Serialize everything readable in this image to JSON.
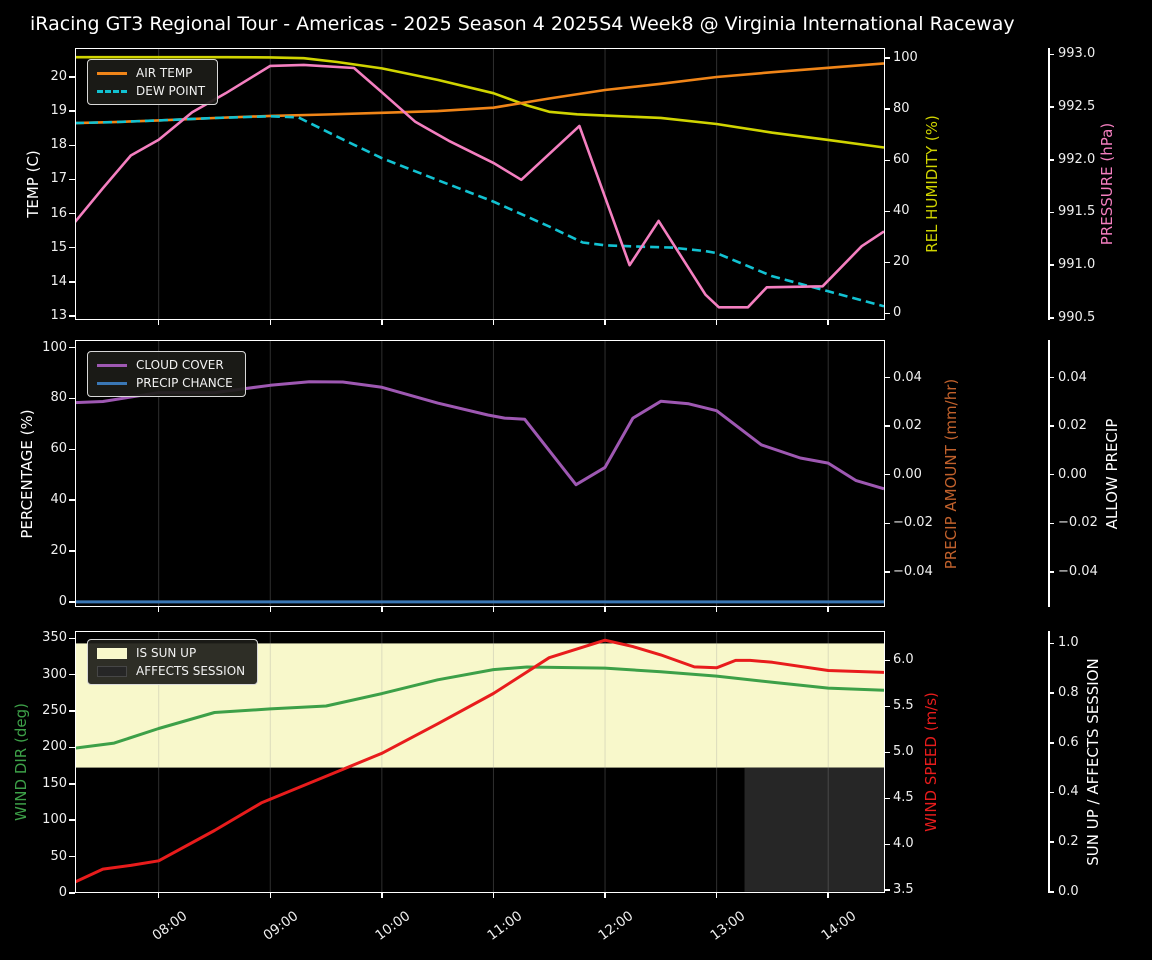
{
  "title": "iRacing GT3 Regional Tour - Americas - 2025 Season 4 2025S4 Week8 @ Virginia International Raceway",
  "colors": {
    "background": "#000000",
    "frame": "#ffffff",
    "grid": "#9a9a9a",
    "tick_text": "#f0f0f0",
    "title_text": "#ffffff"
  },
  "x_axis": {
    "range_hours": [
      7.25,
      14.5
    ],
    "tick_hours": [
      8,
      9,
      10,
      11,
      12,
      13,
      14
    ],
    "tick_labels": [
      "08:00",
      "09:00",
      "10:00",
      "11:00",
      "12:00",
      "13:00",
      "14:00"
    ]
  },
  "chart_data": [
    {
      "id": "temp-humidity-pressure",
      "type": "line",
      "axes": {
        "left": {
          "label": "TEMP (C)",
          "color": "#ffffff",
          "range": [
            12.88,
            20.85
          ],
          "ticks": {
            "values": [
              13,
              14,
              15,
              16,
              17,
              18,
              19,
              20
            ],
            "labels": [
              "13",
              "14",
              "15",
              "16",
              "17",
              "18",
              "19",
              "20"
            ]
          }
        },
        "right1": {
          "label": "REL HUMIDITY (%)",
          "color": "#d0d400",
          "range": [
            -2.6,
            104
          ],
          "ticks": {
            "values": [
              0,
              20,
              40,
              60,
              80,
              100
            ],
            "labels": [
              "0",
              "20",
              "40",
              "60",
              "80",
              "100"
            ]
          }
        },
        "right2": {
          "label": "PRESSURE (hPa)",
          "color": "#f47fc0",
          "range": [
            990.48,
            993.06
          ],
          "ticks": {
            "values": [
              990.5,
              991.0,
              991.5,
              992.0,
              992.5,
              993.0
            ],
            "labels": [
              "990.5",
              "991.0",
              "991.5",
              "992.0",
              "992.5",
              "993.0"
            ]
          }
        }
      },
      "legend": [
        {
          "label": "AIR TEMP",
          "color": "#f08518",
          "swatch": "line"
        },
        {
          "label": "DEW POINT",
          "color": "#12c2d2",
          "swatch": "dashed"
        }
      ],
      "series": [
        {
          "name": "REL HUMIDITY",
          "axis": "right1",
          "color": "#d0d400",
          "points": [
            [
              7.25,
              100.4
            ],
            [
              8,
              100.4
            ],
            [
              8.6,
              100.4
            ],
            [
              9,
              100.3
            ],
            [
              9.3,
              100
            ],
            [
              9.6,
              98.5
            ],
            [
              10,
              96
            ],
            [
              10.5,
              91.5
            ],
            [
              11,
              86.3
            ],
            [
              11.3,
              81.5
            ],
            [
              11.5,
              79
            ],
            [
              11.75,
              78
            ],
            [
              12,
              77.5
            ],
            [
              12.5,
              76.6
            ],
            [
              13,
              74.2
            ],
            [
              13.5,
              70.8
            ],
            [
              14,
              68
            ],
            [
              14.5,
              65
            ]
          ]
        },
        {
          "name": "AIR TEMP",
          "axis": "left",
          "color": "#f08518",
          "points": [
            [
              7.25,
              18.65
            ],
            [
              7.6,
              18.68
            ],
            [
              8,
              18.73
            ],
            [
              8.5,
              18.8
            ],
            [
              9,
              18.86
            ],
            [
              9.5,
              18.9
            ],
            [
              10,
              18.95
            ],
            [
              10.5,
              19
            ],
            [
              11,
              19.1
            ],
            [
              11.5,
              19.37
            ],
            [
              12,
              19.62
            ],
            [
              12.5,
              19.8
            ],
            [
              13,
              20
            ],
            [
              13.5,
              20.14
            ],
            [
              14,
              20.27
            ],
            [
              14.5,
              20.4
            ]
          ]
        },
        {
          "name": "DEW POINT",
          "axis": "left",
          "color": "#12c2d2",
          "dash": "9 5",
          "points": [
            [
              7.25,
              18.65
            ],
            [
              7.6,
              18.68
            ],
            [
              8,
              18.73
            ],
            [
              8.5,
              18.8
            ],
            [
              9,
              18.85
            ],
            [
              9.25,
              18.82
            ],
            [
              9.6,
              18.25
            ],
            [
              10,
              17.62
            ],
            [
              10.5,
              16.98
            ],
            [
              11,
              16.35
            ],
            [
              11.5,
              15.62
            ],
            [
              11.8,
              15.15
            ],
            [
              12,
              15.07
            ],
            [
              12.3,
              15.03
            ],
            [
              12.6,
              15
            ],
            [
              12.9,
              14.9
            ],
            [
              13,
              14.84
            ],
            [
              13.5,
              14.16
            ],
            [
              14,
              13.72
            ],
            [
              14.5,
              13.28
            ]
          ]
        },
        {
          "name": "PRESSURE",
          "axis": "right2",
          "color": "#f47fc0",
          "points": [
            [
              7.25,
              991.41
            ],
            [
              7.5,
              991.73
            ],
            [
              7.75,
              992.04
            ],
            [
              8,
              992.19
            ],
            [
              8.3,
              992.45
            ],
            [
              8.6,
              992.63
            ],
            [
              9,
              992.89
            ],
            [
              9.3,
              992.9
            ],
            [
              9.75,
              992.87
            ],
            [
              10,
              992.64
            ],
            [
              10.3,
              992.36
            ],
            [
              10.6,
              992.18
            ],
            [
              11,
              991.97
            ],
            [
              11.25,
              991.81
            ],
            [
              11.77,
              992.32
            ],
            [
              12.22,
              991.0
            ],
            [
              12.48,
              991.42
            ],
            [
              12.9,
              990.72
            ],
            [
              13.02,
              990.6
            ],
            [
              13.28,
              990.6
            ],
            [
              13.45,
              990.79
            ],
            [
              13.95,
              990.8
            ],
            [
              14.3,
              991.18
            ],
            [
              14.5,
              991.32
            ]
          ]
        }
      ]
    },
    {
      "id": "cloud-precip",
      "type": "line",
      "axes": {
        "left": {
          "label": "PERCENTAGE (%)",
          "color": "#ffffff",
          "range": [
            -2,
            103
          ],
          "ticks": {
            "values": [
              0,
              20,
              40,
              60,
              80,
              100
            ],
            "labels": [
              "0",
              "20",
              "40",
              "60",
              "80",
              "100"
            ]
          }
        },
        "right1": {
          "label": "PRECIP AMOUNT (mm/hr)",
          "color": "#c1612c",
          "range": [
            -0.0545,
            0.0555
          ],
          "ticks": {
            "values": [
              -0.04,
              -0.02,
              0,
              0.02,
              0.04
            ],
            "labels": [
              "−0.04",
              "−0.02",
              "0.00",
              "0.02",
              "0.04"
            ]
          }
        },
        "right2": {
          "label": "ALLOW PRECIP",
          "color": "#ffffff",
          "range": [
            -0.0545,
            0.0555
          ],
          "ticks": {
            "values": [
              -0.04,
              -0.02,
              0,
              0.02,
              0.04
            ],
            "labels": [
              "−0.04",
              "−0.02",
              "0.00",
              "0.02",
              "0.04"
            ]
          }
        }
      },
      "legend": [
        {
          "label": "CLOUD COVER",
          "color": "#9e58b2",
          "swatch": "line"
        },
        {
          "label": "PRECIP CHANCE",
          "color": "#3a77b5",
          "swatch": "line"
        }
      ],
      "series": [
        {
          "name": "CLOUD COVER",
          "axis": "left",
          "color": "#9e58b2",
          "points": [
            [
              7.25,
              78.4
            ],
            [
              7.5,
              78.8
            ],
            [
              8,
              82.3
            ],
            [
              8.5,
              82.3
            ],
            [
              9,
              85.2
            ],
            [
              9.35,
              86.6
            ],
            [
              9.65,
              86.5
            ],
            [
              10,
              84.4
            ],
            [
              10.5,
              78.2
            ],
            [
              10.95,
              73.5
            ],
            [
              11.1,
              72.3
            ],
            [
              11.28,
              71.8
            ],
            [
              11.74,
              46.1
            ],
            [
              12,
              52.9
            ],
            [
              12.25,
              72.3
            ],
            [
              12.5,
              78.9
            ],
            [
              12.75,
              77.9
            ],
            [
              13,
              75.2
            ],
            [
              13.4,
              61.8
            ],
            [
              13.75,
              56.6
            ],
            [
              14,
              54.6
            ],
            [
              14.25,
              47.7
            ],
            [
              14.5,
              44.5
            ]
          ]
        },
        {
          "name": "PRECIP CHANCE",
          "axis": "left",
          "color": "#3a77b5",
          "points": [
            [
              7.25,
              0
            ],
            [
              14.5,
              0
            ]
          ]
        }
      ]
    },
    {
      "id": "wind-sun",
      "type": "line",
      "axes": {
        "left": {
          "label": "WIND DIR (deg)",
          "color": "#3da048",
          "range": [
            0,
            360
          ],
          "ticks": {
            "values": [
              0,
              50,
              100,
              150,
              200,
              250,
              300,
              350
            ],
            "labels": [
              "0",
              "50",
              "100",
              "150",
              "200",
              "250",
              "300",
              "350"
            ]
          }
        },
        "right1": {
          "label": "WIND SPEED (m/s)",
          "color": "#e81c1c",
          "range": [
            3.47,
            6.32
          ],
          "ticks": {
            "values": [
              3.5,
              4.0,
              4.5,
              5.0,
              5.5,
              6.0
            ],
            "labels": [
              "3.5",
              "4.0",
              "4.5",
              "5.0",
              "5.5",
              "6.0"
            ]
          }
        },
        "right2": {
          "label": "SUN UP / AFFECTS SESSION",
          "color": "#ffffff",
          "range": [
            -0.005,
            1.05
          ],
          "ticks": {
            "values": [
              0,
              0.2,
              0.4,
              0.6,
              0.8,
              1.0
            ],
            "labels": [
              "0.0",
              "0.2",
              "0.4",
              "0.6",
              "0.8",
              "1.0"
            ]
          }
        }
      },
      "legend": [
        {
          "label": "IS SUN UP",
          "color": "#f8f8cb",
          "swatch": "patch"
        },
        {
          "label": "AFFECTS SESSION",
          "color": "#262626",
          "swatch": "patch"
        }
      ],
      "bands": [
        {
          "name": "is-sun-up",
          "axis": "right2",
          "x": [
            7.25,
            14.5
          ],
          "y": [
            0.5,
            1.0
          ],
          "color": "#f8f8cb"
        },
        {
          "name": "affects-session",
          "axis": "right2",
          "x": [
            13.25,
            14.5
          ],
          "y": [
            0.0,
            0.5
          ],
          "color": "#262626"
        }
      ],
      "series": [
        {
          "name": "WIND DIR",
          "axis": "left",
          "color": "#3da048",
          "points": [
            [
              7.25,
              199
            ],
            [
              7.6,
              206
            ],
            [
              8,
              226
            ],
            [
              8.5,
              248
            ],
            [
              9,
              253
            ],
            [
              9.5,
              257
            ],
            [
              10,
              274
            ],
            [
              10.5,
              293
            ],
            [
              11,
              307
            ],
            [
              11.3,
              310.5
            ],
            [
              12,
              309
            ],
            [
              12.5,
              304
            ],
            [
              13,
              298
            ],
            [
              13.5,
              289.5
            ],
            [
              14,
              281.5
            ],
            [
              14.5,
              278.5
            ]
          ]
        },
        {
          "name": "WIND SPEED",
          "axis": "right1",
          "color": "#e81c1c",
          "points": [
            [
              7.25,
              3.59
            ],
            [
              7.5,
              3.73
            ],
            [
              7.75,
              3.77
            ],
            [
              8,
              3.82
            ],
            [
              8.5,
              4.15
            ],
            [
              8.92,
              4.45
            ],
            [
              9.5,
              4.74
            ],
            [
              10,
              4.99
            ],
            [
              10.5,
              5.31
            ],
            [
              11,
              5.64
            ],
            [
              11.5,
              6.03
            ],
            [
              12,
              6.22
            ],
            [
              12.25,
              6.15
            ],
            [
              12.5,
              6.06
            ],
            [
              12.8,
              5.93
            ],
            [
              13,
              5.92
            ],
            [
              13.17,
              6.0
            ],
            [
              13.3,
              6.0
            ],
            [
              13.5,
              5.98
            ],
            [
              14,
              5.89
            ],
            [
              14.5,
              5.87
            ]
          ]
        }
      ]
    }
  ]
}
